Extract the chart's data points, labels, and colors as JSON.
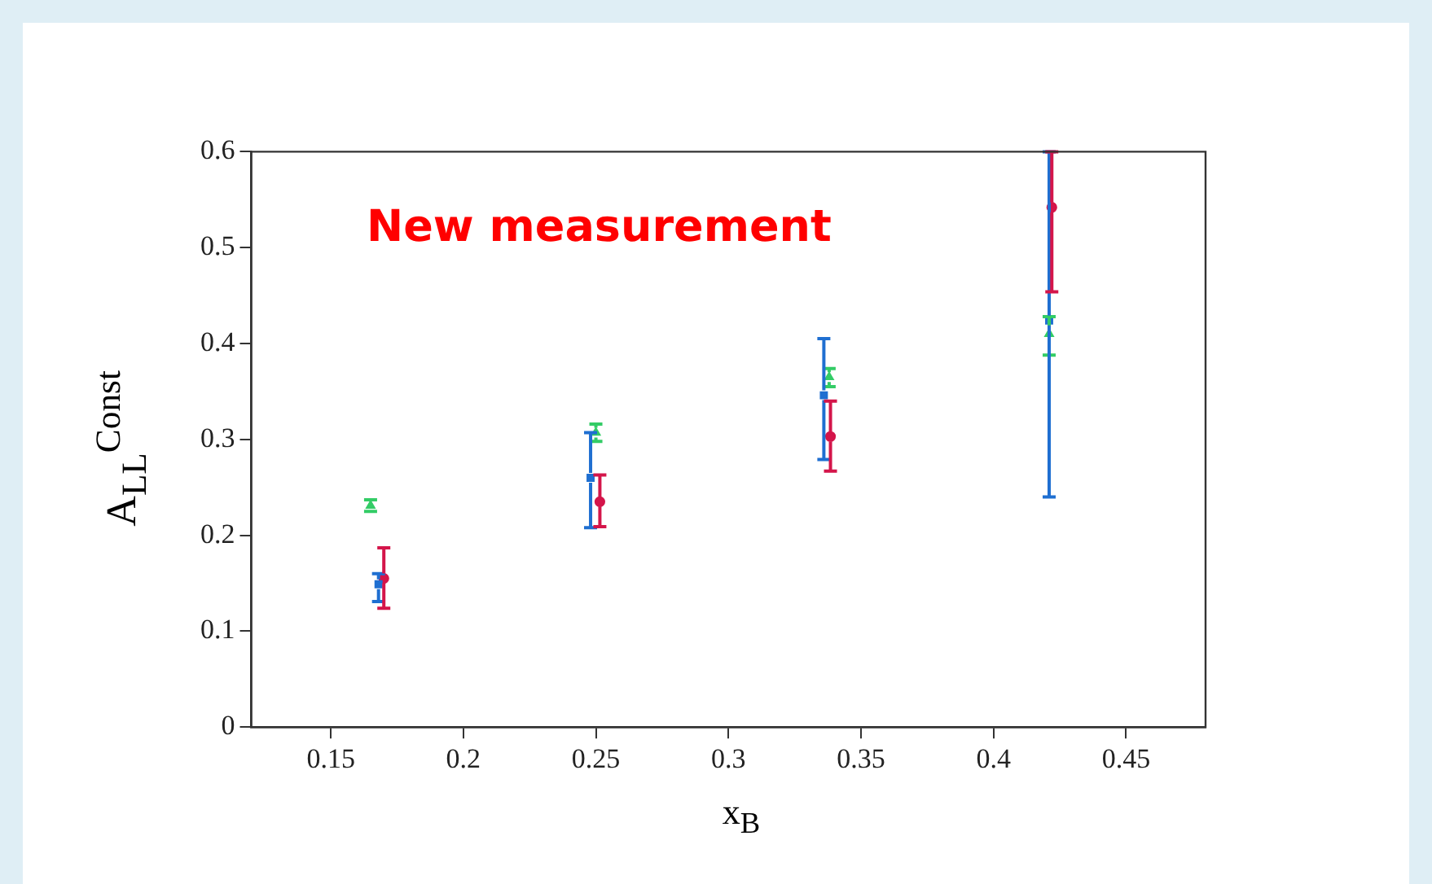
{
  "chart_data": {
    "type": "scatter",
    "xlabel": "x$_{B}$",
    "ylabel": "A$_{LL}$$^{Const}$",
    "annotations": [
      "New measurement"
    ],
    "xlim": [
      0.12,
      0.48
    ],
    "xticks": [
      0.15,
      0.2,
      0.25,
      0.3,
      0.35,
      0.4,
      0.45
    ],
    "ylim": [
      0,
      0.6
    ],
    "yticks": [
      0,
      0.1,
      0.2,
      0.3,
      0.4,
      0.5,
      0.6
    ],
    "grid": false,
    "legend": false,
    "series": [
      {
        "color": "#33cc66",
        "marker": "triangle",
        "x": [
          0.165,
          0.25,
          0.338,
          0.421
        ],
        "values": [
          0.231,
          0.307,
          0.365,
          0.41
        ],
        "errors": [
          [
            0.225,
            0.237
          ],
          [
            0.298,
            0.316
          ],
          [
            0.355,
            0.374
          ],
          [
            0.388,
            0.428
          ]
        ]
      },
      {
        "color": "#1f6fd1",
        "marker": "square",
        "x": [
          0.168,
          0.248,
          0.336,
          0.421
        ],
        "values": [
          0.149,
          0.26,
          0.346,
          0.424
        ],
        "errors": [
          [
            0.131,
            0.16
          ],
          [
            0.208,
            0.307
          ],
          [
            0.279,
            0.405
          ],
          [
            0.24,
            0.6
          ]
        ]
      },
      {
        "color": "#d4154a",
        "marker": "circle",
        "x": [
          0.17,
          0.2515,
          0.3385,
          0.422
        ],
        "values": [
          0.155,
          0.235,
          0.303,
          0.542
        ],
        "errors": [
          [
            0.124,
            0.187
          ],
          [
            0.209,
            0.263
          ],
          [
            0.267,
            0.34
          ],
          [
            0.454,
            0.6
          ]
        ]
      }
    ]
  }
}
